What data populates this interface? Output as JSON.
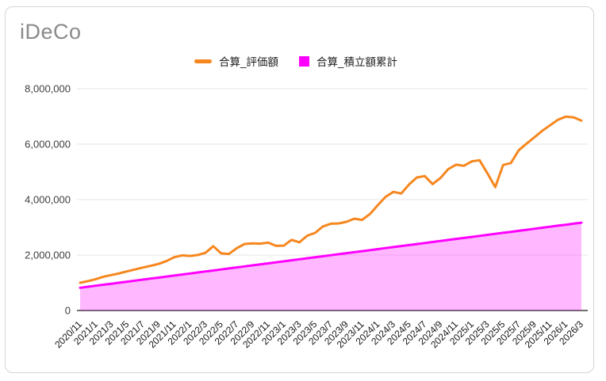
{
  "colors": {
    "evaluation_line": "#f6871f",
    "contribution_line": "#ff00ff",
    "contribution_fill": "rgba(255,0,255,0.28)",
    "grid": "#e6e6e6",
    "baseline": "#6e6e6e",
    "title_text": "#8a8a8a",
    "axis_text": "#3d3d3d"
  },
  "chart_data": {
    "type": "line",
    "title": "iDeCo",
    "xlabel": "",
    "ylabel": "",
    "ylim": [
      0,
      8000000
    ],
    "y_ticks": [
      0,
      2000000,
      4000000,
      6000000,
      8000000
    ],
    "y_tick_labels": [
      "0",
      "2,000,000",
      "4,000,000",
      "6,000,000",
      "8,000,000"
    ],
    "grid": true,
    "legend_position": "top",
    "x_tick_step": 2,
    "x": [
      "2020/11",
      "2020/12",
      "2021/1",
      "2021/2",
      "2021/3",
      "2021/4",
      "2021/5",
      "2021/6",
      "2021/7",
      "2021/8",
      "2021/9",
      "2021/10",
      "2021/11",
      "2021/12",
      "2022/1",
      "2022/2",
      "2022/3",
      "2022/4",
      "2022/5",
      "2022/6",
      "2022/7",
      "2022/8",
      "2022/9",
      "2022/10",
      "2022/11",
      "2022/12",
      "2023/1",
      "2023/2",
      "2023/3",
      "2023/4",
      "2023/5",
      "2023/6",
      "2023/7",
      "2023/8",
      "2023/9",
      "2023/10",
      "2023/11",
      "2023/12",
      "2024/1",
      "2024/2",
      "2024/3",
      "2024/4",
      "2024/5",
      "2024/6",
      "2024/7",
      "2024/8",
      "2024/9",
      "2024/10",
      "2024/11",
      "2024/12",
      "2025/1",
      "2025/2",
      "2025/3",
      "2025/4",
      "2025/5",
      "2025/6",
      "2025/7",
      "2025/8",
      "2025/9",
      "2025/10",
      "2025/11",
      "2025/12",
      "2026/1",
      "2026/2",
      "2026/3"
    ],
    "series": [
      {
        "name": "合算_評価額",
        "type": "line",
        "color": "#f6871f",
        "values": [
          1000000,
          1060000,
          1130000,
          1220000,
          1280000,
          1340000,
          1410000,
          1480000,
          1550000,
          1610000,
          1680000,
          1780000,
          1920000,
          1990000,
          1970000,
          2000000,
          2080000,
          2320000,
          2060000,
          2040000,
          2250000,
          2400000,
          2420000,
          2410000,
          2450000,
          2330000,
          2340000,
          2550000,
          2460000,
          2700000,
          2800000,
          3030000,
          3130000,
          3140000,
          3200000,
          3310000,
          3270000,
          3480000,
          3800000,
          4100000,
          4280000,
          4220000,
          4550000,
          4800000,
          4850000,
          4560000,
          4780000,
          5100000,
          5260000,
          5220000,
          5380000,
          5420000,
          4950000,
          4450000,
          5250000,
          5320000,
          5780000,
          6020000,
          6250000,
          6480000,
          6680000,
          6880000,
          6990000,
          6970000,
          6850000
        ]
      },
      {
        "name": "合算_積立額累計",
        "type": "area",
        "color": "#ff00ff",
        "values": [
          820000,
          856700,
          893400,
          930100,
          966800,
          1003500,
          1040200,
          1076900,
          1113600,
          1150300,
          1187000,
          1223700,
          1260400,
          1297100,
          1333800,
          1370500,
          1407200,
          1443900,
          1480600,
          1517300,
          1554000,
          1590700,
          1627400,
          1664100,
          1700800,
          1737500,
          1774200,
          1810900,
          1847600,
          1884300,
          1921000,
          1957700,
          1994400,
          2031100,
          2067800,
          2104500,
          2141200,
          2177900,
          2214600,
          2251300,
          2288000,
          2324700,
          2361400,
          2398100,
          2434800,
          2471500,
          2508200,
          2544900,
          2581600,
          2618300,
          2655000,
          2691700,
          2728400,
          2765100,
          2801800,
          2838500,
          2875200,
          2911900,
          2948600,
          2985300,
          3022000,
          3058700,
          3095400,
          3132100,
          3168800
        ]
      }
    ]
  }
}
